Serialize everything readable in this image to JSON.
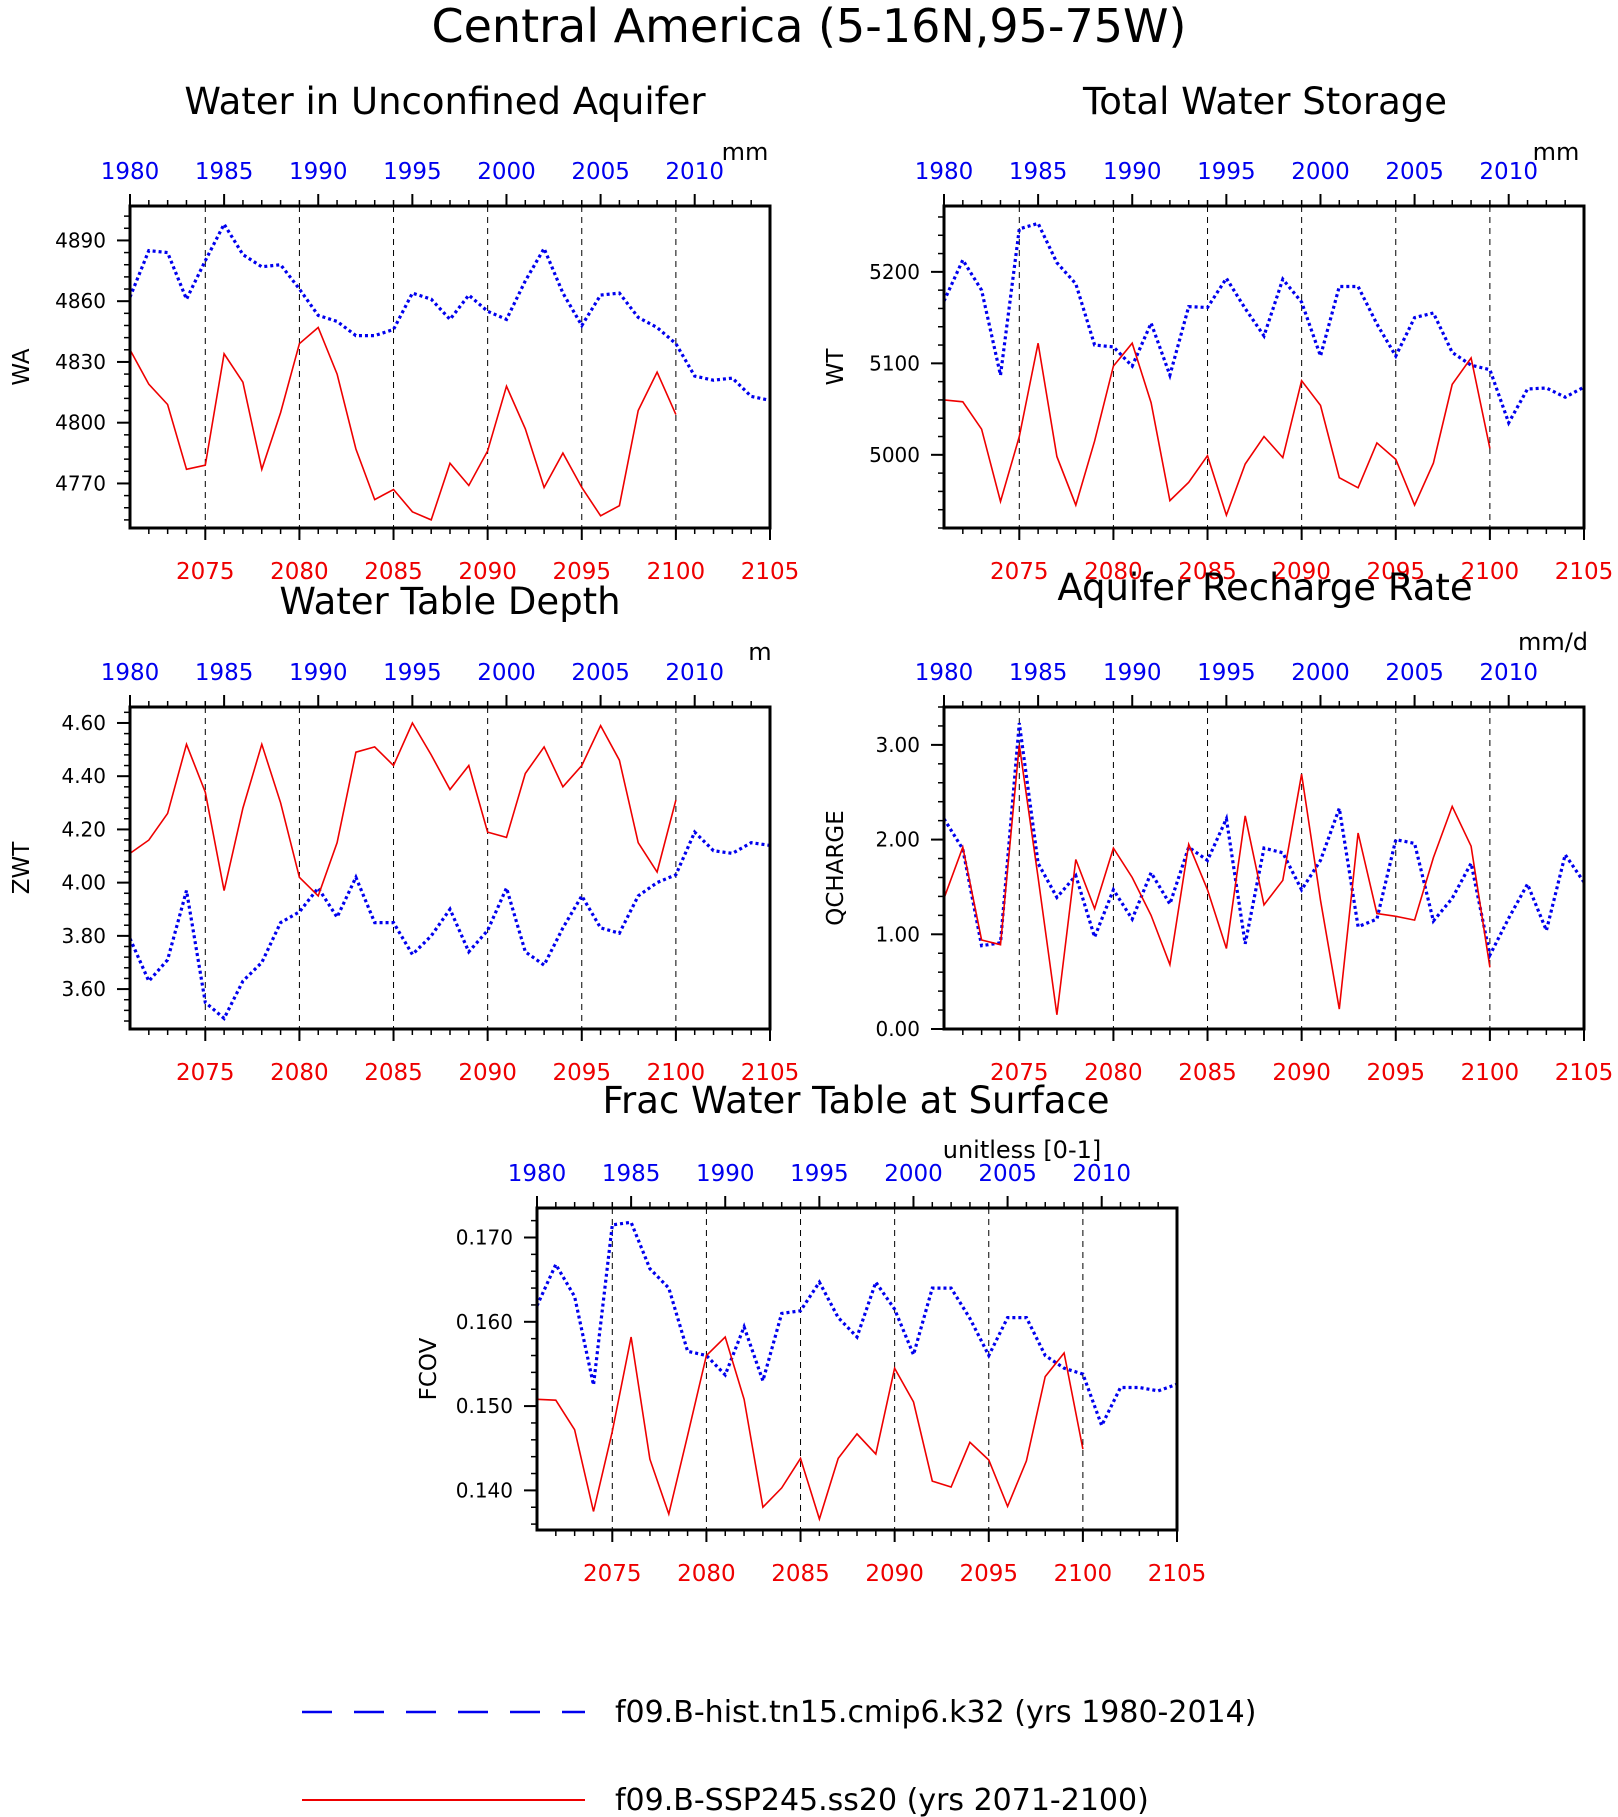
{
  "figure": {
    "title": "Central America (5-16N,95-75W)",
    "colors": {
      "hist": "#0000ee",
      "ssp": "#ee0000",
      "axis": "#000000",
      "bg": "#ffffff"
    },
    "top_years": [
      1980,
      1985,
      1990,
      1995,
      2000,
      2005,
      2010
    ],
    "bottom_years": [
      2075,
      2080,
      2085,
      2090,
      2095,
      2100,
      2105
    ]
  },
  "legend": [
    {
      "label": "f09.B-hist.tn15.cmip6.k32 (yrs 1980-2014)",
      "color": "#0000ee",
      "style": "dashed"
    },
    {
      "label": "f09.B-SSP245.ss20 (yrs 2071-2100)",
      "color": "#ee0000",
      "style": "solid"
    }
  ],
  "chart_data": [
    {
      "type": "line",
      "title": "Water in Unconfined Aquifer",
      "ylabel": "WA",
      "units": "mm",
      "ylim": [
        4748,
        4907
      ],
      "yticks": [
        4770,
        4800,
        4830,
        4860,
        4890
      ],
      "ytick_labels": [
        "4770",
        "4800",
        "4830",
        "4860",
        "4890"
      ],
      "series": [
        {
          "name": "f09.B-hist.tn15.cmip6.k32 (yrs 1980-2014)",
          "x_start": 1980,
          "values": [
            4862,
            4885,
            4884,
            4861,
            4880,
            4898,
            4883,
            4877,
            4878,
            4866,
            4853,
            4850,
            4843,
            4843,
            4846,
            4864,
            4861,
            4851,
            4863,
            4855,
            4851,
            4870,
            4886,
            4864,
            4848,
            4863,
            4864,
            4852,
            4847,
            4839,
            4823,
            4821,
            4822,
            4813,
            4811
          ]
        },
        {
          "name": "f09.B-SSP245.ss20 (yrs 2071-2100)",
          "x_start": 2071,
          "values": [
            4836,
            4819,
            4809,
            4777,
            4779,
            4834,
            4820,
            4777,
            4805,
            4839,
            4847,
            4824,
            4787,
            4762,
            4767,
            4756,
            4752,
            4780,
            4769,
            4786,
            4818,
            4797,
            4768,
            4785,
            4768,
            4754,
            4759,
            4806,
            4825,
            4804
          ]
        }
      ]
    },
    {
      "type": "line",
      "title": "Total Water Storage",
      "ylabel": "WT",
      "units": "mm",
      "ylim": [
        4920,
        5272
      ],
      "yticks": [
        5000,
        5100,
        5200
      ],
      "ytick_labels": [
        "5000",
        "5100",
        "5200"
      ],
      "series": [
        {
          "name": "f09.B-hist.tn15.cmip6.k32 (yrs 1980-2014)",
          "x_start": 1980,
          "values": [
            5168,
            5213,
            5180,
            5087,
            5247,
            5253,
            5210,
            5187,
            5120,
            5118,
            5097,
            5144,
            5087,
            5162,
            5161,
            5193,
            5160,
            5130,
            5192,
            5167,
            5108,
            5184,
            5184,
            5143,
            5108,
            5150,
            5155,
            5112,
            5098,
            5093,
            5035,
            5072,
            5073,
            5063,
            5074
          ]
        },
        {
          "name": "f09.B-SSP245.ss20 (yrs 2071-2100)",
          "x_start": 2071,
          "values": [
            5060,
            5058,
            5028,
            4949,
            5020,
            5122,
            4998,
            4945,
            5015,
            5097,
            5122,
            5057,
            4950,
            4970,
            4999,
            4934,
            4990,
            5020,
            4997,
            5081,
            5054,
            4975,
            4964,
            5013,
            4995,
            4945,
            4991,
            5077,
            5106,
            5007
          ]
        }
      ]
    },
    {
      "type": "line",
      "title": "Water Table Depth",
      "ylabel": "ZWT",
      "units": "m",
      "ylim": [
        3.45,
        4.66
      ],
      "yticks": [
        3.6,
        3.8,
        4.0,
        4.2,
        4.4,
        4.6
      ],
      "ytick_labels": [
        "3.60",
        "3.80",
        "4.00",
        "4.20",
        "4.40",
        "4.60"
      ],
      "series": [
        {
          "name": "f09.B-hist.tn15.cmip6.k32 (yrs 1980-2014)",
          "x_start": 1980,
          "values": [
            3.79,
            3.63,
            3.71,
            3.97,
            3.55,
            3.49,
            3.63,
            3.7,
            3.85,
            3.89,
            3.98,
            3.87,
            4.02,
            3.85,
            3.85,
            3.73,
            3.8,
            3.9,
            3.74,
            3.82,
            3.98,
            3.74,
            3.69,
            3.83,
            3.95,
            3.83,
            3.81,
            3.95,
            4.0,
            4.03,
            4.19,
            4.12,
            4.11,
            4.15,
            4.14
          ]
        },
        {
          "name": "f09.B-SSP245.ss20 (yrs 2071-2100)",
          "x_start": 2071,
          "values": [
            4.11,
            4.16,
            4.26,
            4.52,
            4.34,
            3.97,
            4.28,
            4.52,
            4.3,
            4.02,
            3.95,
            4.15,
            4.49,
            4.51,
            4.44,
            4.6,
            4.48,
            4.35,
            4.44,
            4.19,
            4.17,
            4.41,
            4.51,
            4.36,
            4.44,
            4.59,
            4.46,
            4.15,
            4.04,
            4.31
          ]
        }
      ]
    },
    {
      "type": "line",
      "title": "Aquifer Recharge Rate",
      "ylabel": "QCHARGE",
      "units": "mm/d",
      "ylim": [
        0.0,
        3.4
      ],
      "yticks": [
        0.0,
        1.0,
        2.0,
        3.0
      ],
      "ytick_labels": [
        "0.00",
        "1.00",
        "2.00",
        "3.00"
      ],
      "series": [
        {
          "name": "f09.B-hist.tn15.cmip6.k32 (yrs 1980-2014)",
          "x_start": 1980,
          "values": [
            2.22,
            1.9,
            0.88,
            0.91,
            3.23,
            1.75,
            1.39,
            1.62,
            0.97,
            1.47,
            1.16,
            1.65,
            1.32,
            1.92,
            1.78,
            2.22,
            0.9,
            1.91,
            1.86,
            1.47,
            1.78,
            2.33,
            1.08,
            1.16,
            2.0,
            1.96,
            1.14,
            1.38,
            1.75,
            0.78,
            1.17,
            1.53,
            1.04,
            1.84,
            1.55
          ]
        },
        {
          "name": "f09.B-SSP245.ss20 (yrs 2071-2100)",
          "x_start": 2071,
          "values": [
            1.38,
            1.92,
            0.94,
            0.89,
            3.0,
            1.6,
            0.15,
            1.79,
            1.27,
            1.91,
            1.6,
            1.2,
            0.68,
            1.95,
            1.47,
            0.85,
            2.25,
            1.31,
            1.57,
            2.69,
            1.36,
            0.21,
            2.07,
            1.22,
            1.19,
            1.15,
            1.81,
            2.35,
            1.93,
            0.65
          ]
        }
      ]
    },
    {
      "type": "line",
      "title": "Frac Water Table at Surface",
      "ylabel": "FCOV",
      "units": "unitless [0-1]",
      "ylim": [
        0.1353,
        0.1735
      ],
      "yticks": [
        0.14,
        0.15,
        0.16,
        0.17
      ],
      "ytick_labels": [
        "0.140",
        "0.150",
        "0.160",
        "0.170"
      ],
      "series": [
        {
          "name": "f09.B-hist.tn15.cmip6.k32 (yrs 1980-2014)",
          "x_start": 1980,
          "values": [
            0.1619,
            0.1668,
            0.163,
            0.1525,
            0.1715,
            0.1718,
            0.1663,
            0.164,
            0.1565,
            0.156,
            0.1537,
            0.1594,
            0.153,
            0.161,
            0.1613,
            0.1647,
            0.1605,
            0.1582,
            0.1647,
            0.1615,
            0.1561,
            0.164,
            0.164,
            0.1604,
            0.156,
            0.1605,
            0.1605,
            0.156,
            0.1545,
            0.1538,
            0.1477,
            0.1522,
            0.1522,
            0.1518,
            0.1526
          ]
        },
        {
          "name": "f09.B-SSP245.ss20 (yrs 2071-2100)",
          "x_start": 2071,
          "values": [
            0.1508,
            0.1507,
            0.1472,
            0.1375,
            0.147,
            0.1582,
            0.1437,
            0.1372,
            0.1465,
            0.156,
            0.1582,
            0.1508,
            0.138,
            0.1403,
            0.1438,
            0.1366,
            0.1438,
            0.1467,
            0.1443,
            0.1545,
            0.1505,
            0.1411,
            0.1404,
            0.1457,
            0.1436,
            0.1381,
            0.1435,
            0.1535,
            0.1563,
            0.1449
          ]
        }
      ]
    }
  ]
}
